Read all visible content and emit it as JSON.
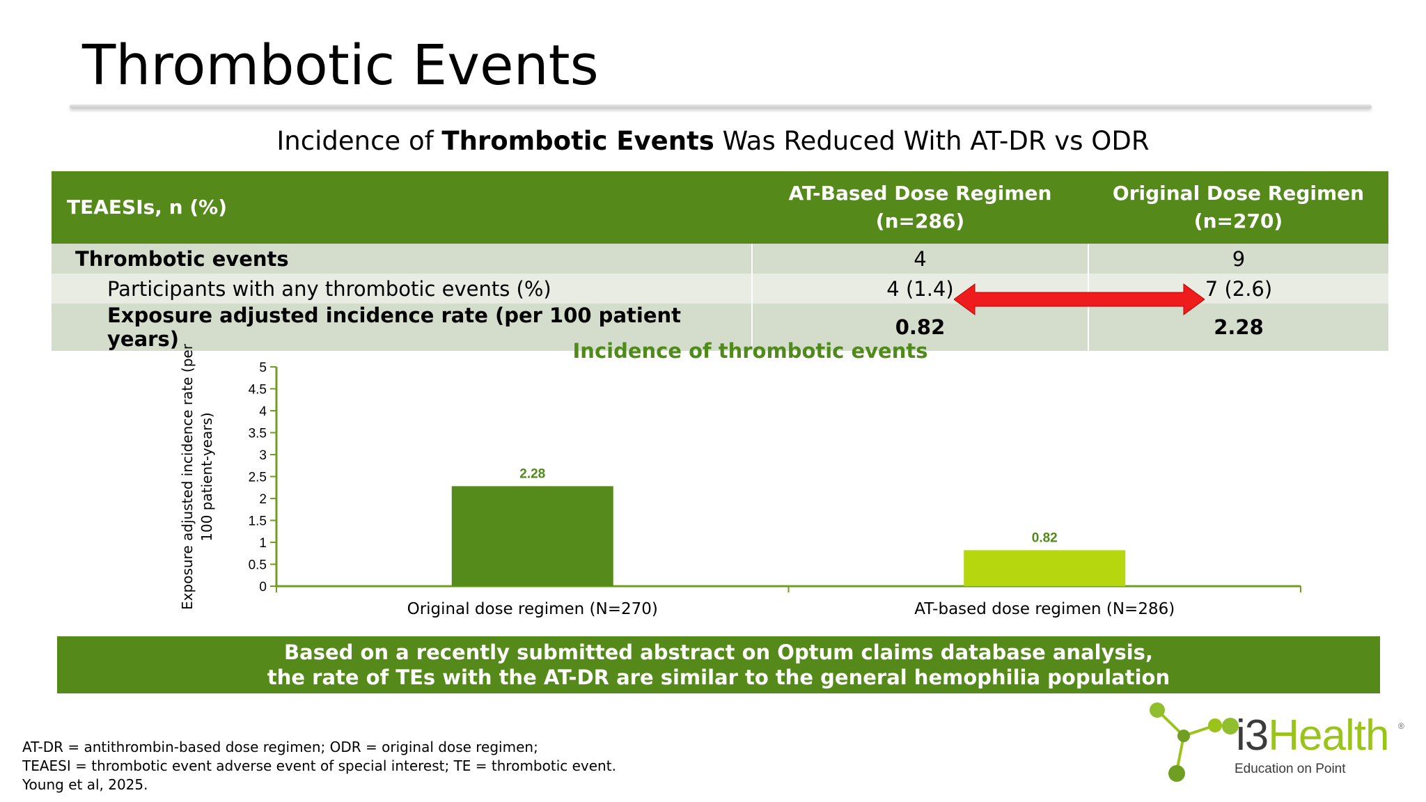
{
  "slide": {
    "title": "Thrombotic Events",
    "subtitle_pre": "Incidence of ",
    "subtitle_bold": "Thrombotic Events",
    "subtitle_post": " Was Reduced With AT-DR vs ODR"
  },
  "table": {
    "header": {
      "label": "TEAESIs, n (%)",
      "col1_line1": "AT-Based Dose Regimen",
      "col1_line2": "(n=286)",
      "col2_line1": "Original Dose Regimen",
      "col2_line2": "(n=270)"
    },
    "rows": [
      {
        "label": "Thrombotic events",
        "at": "4",
        "odr": "9"
      },
      {
        "label": "Participants with any thrombotic events (%)",
        "at": "4 (1.4)",
        "odr": "7 (2.6)"
      },
      {
        "label": "Exposure adjusted incidence rate (per 100 patient years)",
        "at": "0.82",
        "odr": "2.28"
      }
    ]
  },
  "colors": {
    "header_green": "#55891a",
    "bar_dark": "#558b1a",
    "bar_light": "#b6d60e",
    "arrow_red": "#ee1c1c"
  },
  "chart_data": {
    "type": "bar",
    "title": "Incidence of thrombotic events",
    "ylabel_line1": "Exposure adjusted incidence rate (per",
    "ylabel_line2": "100 patient-years)",
    "xlabel": "",
    "categories": [
      "Original dose regimen (N=270)",
      "AT-based dose regimen (N=286)"
    ],
    "values": [
      2.28,
      0.82
    ],
    "value_labels": [
      "2.28",
      "0.82"
    ],
    "ylim": [
      0,
      5
    ],
    "yticks": [
      "0",
      "0.5",
      "1",
      "1.5",
      "2",
      "2.5",
      "3",
      "3.5",
      "4",
      "4.5",
      "5"
    ],
    "grid": false,
    "legend": "none"
  },
  "banner": {
    "line1": "Based on a recently submitted abstract on Optum claims database analysis,",
    "line2": "the rate of TEs with the AT-DR are similar to the general hemophilia population"
  },
  "footnotes": [
    "AT-DR = antithrombin-based dose regimen; ODR = original dose regimen;",
    "TEAESI = thrombotic event adverse event of special interest; TE = thrombotic event.",
    "Young et al, 2025."
  ],
  "logo": {
    "brand_i3": "i3",
    "brand_health": "Health",
    "reg": "®",
    "tagline": "Education on Point"
  }
}
